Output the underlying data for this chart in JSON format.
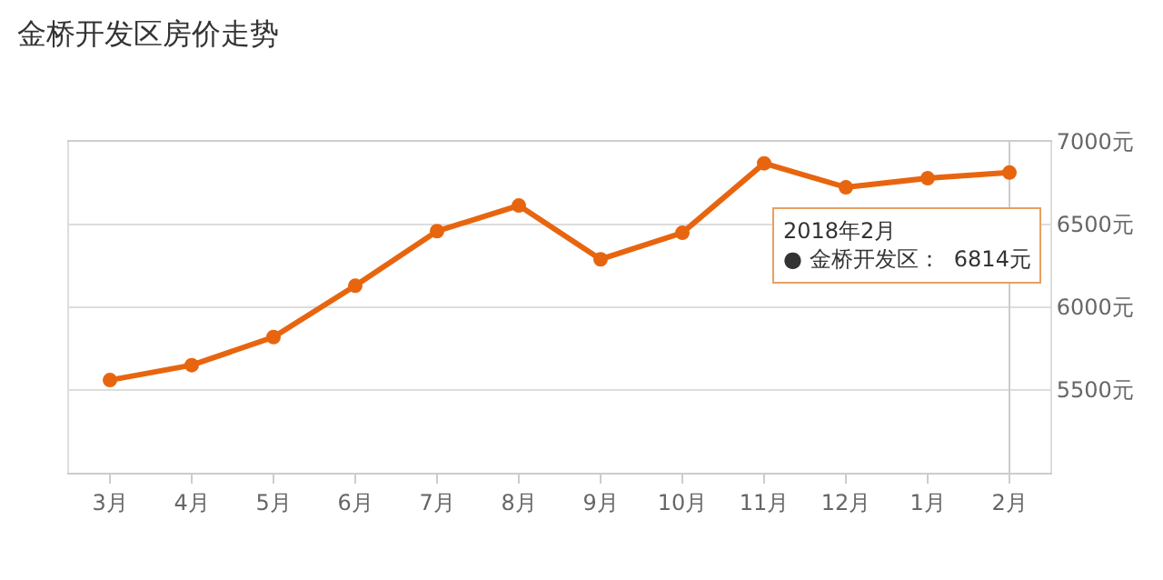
{
  "chart_data": {
    "type": "line",
    "title": "金桥开发区房价走势",
    "categories": [
      "3月",
      "4月",
      "5月",
      "6月",
      "7月",
      "8月",
      "9月",
      "10月",
      "11月",
      "12月",
      "1月",
      "2月"
    ],
    "series": [
      {
        "color": "#e8650f",
        "values": [
          5560,
          5650,
          5820,
          6130,
          6460,
          6615,
          6290,
          6450,
          6870,
          6725,
          6780,
          6814
        ]
      }
    ],
    "ylim": [
      5000,
      7000
    ],
    "yticks": [
      {
        "value": 5000,
        "label": null
      },
      {
        "value": 5500,
        "label": "5500元"
      },
      {
        "value": 6000,
        "label": "6000元"
      },
      {
        "value": 6500,
        "label": "6500元"
      },
      {
        "value": 7000,
        "label": "7000元"
      }
    ],
    "grid": "y",
    "legend": false,
    "marker": "circle",
    "line_style": "solid",
    "ref_lines": [
      {
        "axis": "x",
        "value": "2月",
        "color": "#cccccc"
      }
    ],
    "annotations": [
      "2018年2月\n● 金桥开发区：  6814元"
    ]
  }
}
